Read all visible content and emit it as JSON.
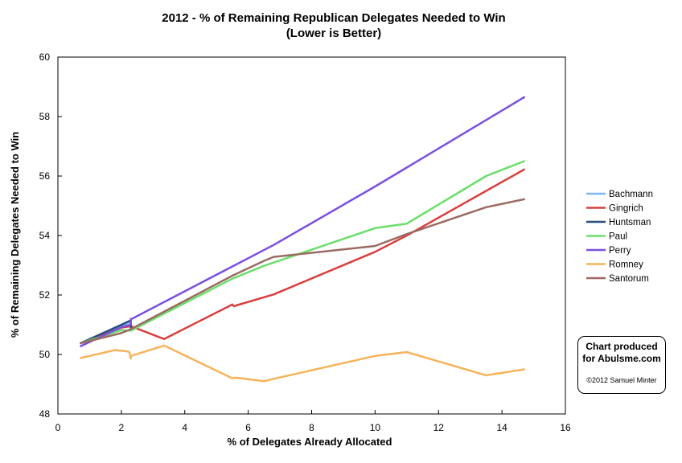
{
  "chart_data": {
    "type": "line",
    "title": "2012 - % of Remaining Republican Delegates Needed to Win",
    "subtitle": "(Lower is Better)",
    "xlabel": "% of Delegates Already Allocated",
    "ylabel": "% of Remaining Delegates Needed to Win",
    "xlim": [
      0,
      16
    ],
    "ylim": [
      48,
      60
    ],
    "xticks": [
      0,
      2,
      4,
      6,
      8,
      10,
      12,
      14,
      16
    ],
    "yticks": [
      48,
      50,
      52,
      54,
      56,
      58,
      60
    ],
    "grid": false,
    "legend_position": "right",
    "series": [
      {
        "name": "Bachmann",
        "color": "#7fb7f0",
        "x": [
          0.72,
          2.3
        ],
        "y": [
          50.38,
          51.1
        ]
      },
      {
        "name": "Gingrich",
        "color": "#d94040",
        "x": [
          0.72,
          2.0,
          2.3,
          3.35,
          5.5,
          5.55,
          5.62,
          6.8,
          10.0,
          11.0,
          13.5,
          14.7
        ],
        "y": [
          50.38,
          50.9,
          50.95,
          50.52,
          51.68,
          51.62,
          51.65,
          52.02,
          53.45,
          54.0,
          55.5,
          56.22
        ]
      },
      {
        "name": "Huntsman",
        "color": "#2b4f7a",
        "x": [
          0.72,
          2.0,
          2.3,
          2.3
        ],
        "y": [
          50.38,
          51.0,
          51.15,
          50.9
        ]
      },
      {
        "name": "Paul",
        "color": "#6bde6b",
        "x": [
          0.72,
          2.0,
          2.3,
          5.5,
          6.5,
          10.0,
          11.0,
          13.5,
          14.7
        ],
        "y": [
          50.38,
          50.82,
          50.8,
          52.55,
          52.98,
          54.25,
          54.4,
          56.0,
          56.5
        ]
      },
      {
        "name": "Perry",
        "color": "#7b4fe0",
        "x": [
          0.72,
          2.0,
          2.3,
          2.3,
          2.3,
          6.8,
          10.0,
          14.7
        ],
        "y": [
          50.28,
          50.92,
          51.0,
          51.2,
          51.18,
          53.68,
          55.65,
          58.65
        ]
      },
      {
        "name": "Romney",
        "color": "#f7b35b",
        "x": [
          0.72,
          1.8,
          2.2,
          2.25,
          2.3,
          2.3,
          3.35,
          5.5,
          5.62,
          6.5,
          6.8,
          10.0,
          11.0,
          13.5,
          14.7
        ],
        "y": [
          49.88,
          50.15,
          50.1,
          50.08,
          49.86,
          49.95,
          50.3,
          49.2,
          49.22,
          49.1,
          49.18,
          49.95,
          50.08,
          49.3,
          49.5
        ]
      },
      {
        "name": "Santorum",
        "color": "#9a6b62",
        "x": [
          0.72,
          2.0,
          2.3,
          5.5,
          6.5,
          6.8,
          10.0,
          11.0,
          13.5,
          14.7
        ],
        "y": [
          50.38,
          50.72,
          50.85,
          52.65,
          53.15,
          53.28,
          53.65,
          54.05,
          54.95,
          55.22
        ]
      }
    ]
  },
  "credit": {
    "line1": "Chart produced",
    "line2": "for Abulsme.com",
    "copyright": "©2012 Samuel Minter"
  }
}
